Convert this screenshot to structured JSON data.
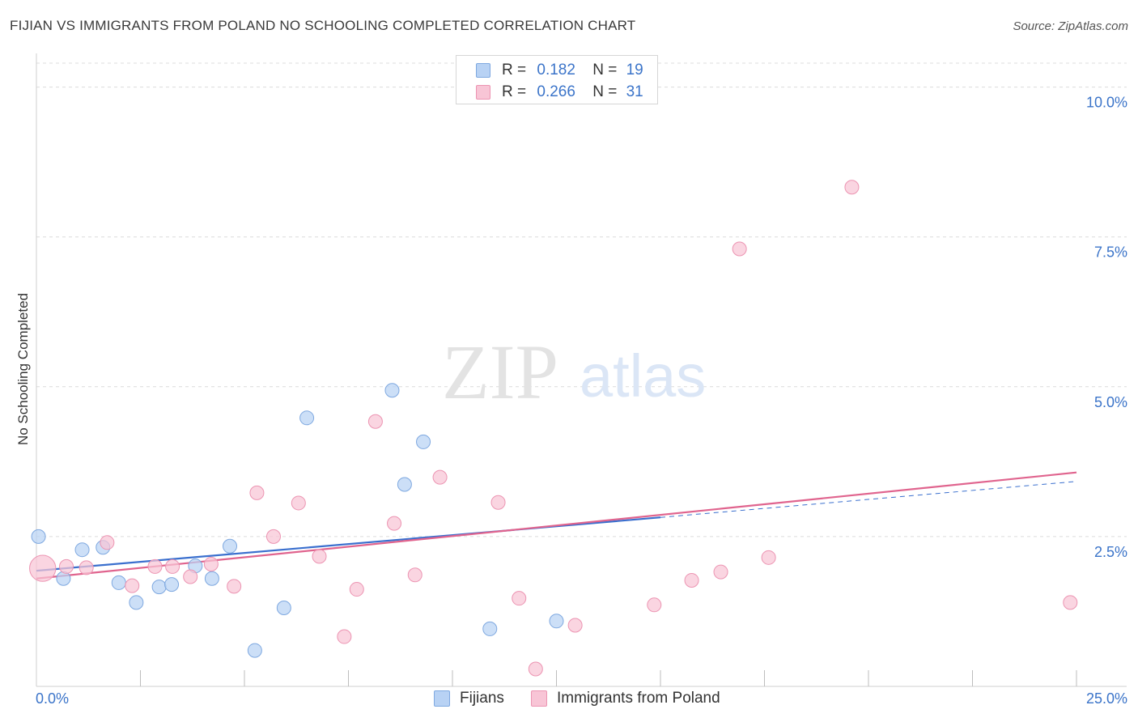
{
  "header": {
    "title": "FIJIAN VS IMMIGRANTS FROM POLAND NO SCHOOLING COMPLETED CORRELATION CHART",
    "source": "Source: ZipAtlas.com"
  },
  "legend": {
    "rows": [
      {
        "r_label": "R =",
        "r_value": "0.182",
        "n_label": "N =",
        "n_value": "19"
      },
      {
        "r_label": "R =",
        "r_value": "0.266",
        "n_label": "N =",
        "n_value": "31"
      }
    ]
  },
  "bottom_legend": {
    "series_a": "Fijians",
    "series_b": "Immigrants from Poland"
  },
  "colors": {
    "blue_fill": "#b8d2f4",
    "blue_stroke": "#7ea8e0",
    "blue_line": "#3a6fce",
    "pink_fill": "#f8c5d6",
    "pink_stroke": "#ec94b2",
    "pink_line": "#e0648e",
    "tick_color": "#3b74c9",
    "grid": "#dcdcdc"
  },
  "watermark": {
    "left": "ZIP",
    "right": "atlas"
  },
  "chart_data": {
    "type": "scatter",
    "title": "FIJIAN VS IMMIGRANTS FROM POLAND NO SCHOOLING COMPLETED CORRELATION CHART",
    "xlabel": "",
    "ylabel": "No Schooling Completed",
    "xlim": [
      0,
      25
    ],
    "ylim": [
      0,
      10.4
    ],
    "x_tick_labels": [
      {
        "value": 0,
        "label": "0.0%"
      },
      {
        "value": 25,
        "label": "25.0%"
      }
    ],
    "y_tick_labels": [
      {
        "value": 2.5,
        "label": "2.5%"
      },
      {
        "value": 5.0,
        "label": "5.0%"
      },
      {
        "value": 7.5,
        "label": "7.5%"
      },
      {
        "value": 10.0,
        "label": "10.0%"
      }
    ],
    "x_minor_ticks": [
      2.5,
      5,
      7.5,
      10,
      12.5,
      15,
      17.5,
      20,
      22.5,
      25
    ],
    "series": [
      {
        "name": "Fijians",
        "color": "blue",
        "points": [
          {
            "x": 0.05,
            "y": 2.5,
            "s": 1.0
          },
          {
            "x": 0.65,
            "y": 1.8,
            "s": 1.0
          },
          {
            "x": 1.1,
            "y": 2.28,
            "s": 1.0
          },
          {
            "x": 1.6,
            "y": 2.32,
            "s": 1.0
          },
          {
            "x": 1.98,
            "y": 1.73,
            "s": 1.0
          },
          {
            "x": 2.4,
            "y": 1.4,
            "s": 1.0
          },
          {
            "x": 2.95,
            "y": 1.66,
            "s": 1.0
          },
          {
            "x": 3.25,
            "y": 1.7,
            "s": 1.0
          },
          {
            "x": 3.82,
            "y": 2.01,
            "s": 1.0
          },
          {
            "x": 4.22,
            "y": 1.8,
            "s": 1.0
          },
          {
            "x": 4.65,
            "y": 2.34,
            "s": 1.0
          },
          {
            "x": 5.25,
            "y": 0.6,
            "s": 1.0
          },
          {
            "x": 5.95,
            "y": 1.31,
            "s": 1.0
          },
          {
            "x": 6.5,
            "y": 4.48,
            "s": 1.0
          },
          {
            "x": 8.55,
            "y": 4.94,
            "s": 1.0
          },
          {
            "x": 8.85,
            "y": 3.37,
            "s": 1.0
          },
          {
            "x": 9.3,
            "y": 4.08,
            "s": 1.0
          },
          {
            "x": 10.9,
            "y": 0.96,
            "s": 1.0
          },
          {
            "x": 12.5,
            "y": 1.09,
            "s": 1.0
          }
        ],
        "trend": {
          "x0": 0,
          "y0": 1.93,
          "x1": 15,
          "y1": 2.82,
          "dash_x1": 25,
          "dash_y1": 3.42
        }
      },
      {
        "name": "Immigrants from Poland",
        "color": "pink",
        "points": [
          {
            "x": 0.15,
            "y": 1.97,
            "s": 1.9
          },
          {
            "x": 0.72,
            "y": 2.0,
            "s": 1.0
          },
          {
            "x": 1.2,
            "y": 1.98,
            "s": 1.0
          },
          {
            "x": 1.7,
            "y": 2.4,
            "s": 1.0
          },
          {
            "x": 2.3,
            "y": 1.68,
            "s": 1.0
          },
          {
            "x": 2.85,
            "y": 2.0,
            "s": 1.0
          },
          {
            "x": 3.27,
            "y": 2.0,
            "s": 1.0
          },
          {
            "x": 3.7,
            "y": 1.83,
            "s": 1.0
          },
          {
            "x": 4.2,
            "y": 2.04,
            "s": 1.0
          },
          {
            "x": 4.75,
            "y": 1.67,
            "s": 1.0
          },
          {
            "x": 5.3,
            "y": 3.23,
            "s": 1.0
          },
          {
            "x": 5.7,
            "y": 2.5,
            "s": 1.0
          },
          {
            "x": 6.3,
            "y": 3.06,
            "s": 1.0
          },
          {
            "x": 6.8,
            "y": 2.17,
            "s": 1.0
          },
          {
            "x": 7.4,
            "y": 0.83,
            "s": 1.0
          },
          {
            "x": 7.7,
            "y": 1.62,
            "s": 1.0
          },
          {
            "x": 8.15,
            "y": 4.42,
            "s": 1.0
          },
          {
            "x": 8.6,
            "y": 2.72,
            "s": 1.0
          },
          {
            "x": 9.1,
            "y": 1.86,
            "s": 1.0
          },
          {
            "x": 9.7,
            "y": 3.49,
            "s": 1.0
          },
          {
            "x": 11.1,
            "y": 3.07,
            "s": 1.0
          },
          {
            "x": 11.6,
            "y": 1.47,
            "s": 1.0
          },
          {
            "x": 12.0,
            "y": 0.29,
            "s": 1.0
          },
          {
            "x": 12.95,
            "y": 1.02,
            "s": 1.0
          },
          {
            "x": 14.85,
            "y": 1.36,
            "s": 1.0
          },
          {
            "x": 15.75,
            "y": 1.77,
            "s": 1.0
          },
          {
            "x": 16.45,
            "y": 1.91,
            "s": 1.0
          },
          {
            "x": 16.9,
            "y": 7.3,
            "s": 1.0
          },
          {
            "x": 17.6,
            "y": 2.15,
            "s": 1.0
          },
          {
            "x": 19.6,
            "y": 8.33,
            "s": 1.0
          },
          {
            "x": 24.85,
            "y": 1.4,
            "s": 1.0
          }
        ],
        "trend": {
          "x0": 0,
          "y0": 1.8,
          "x1": 25,
          "y1": 3.57
        }
      }
    ]
  }
}
